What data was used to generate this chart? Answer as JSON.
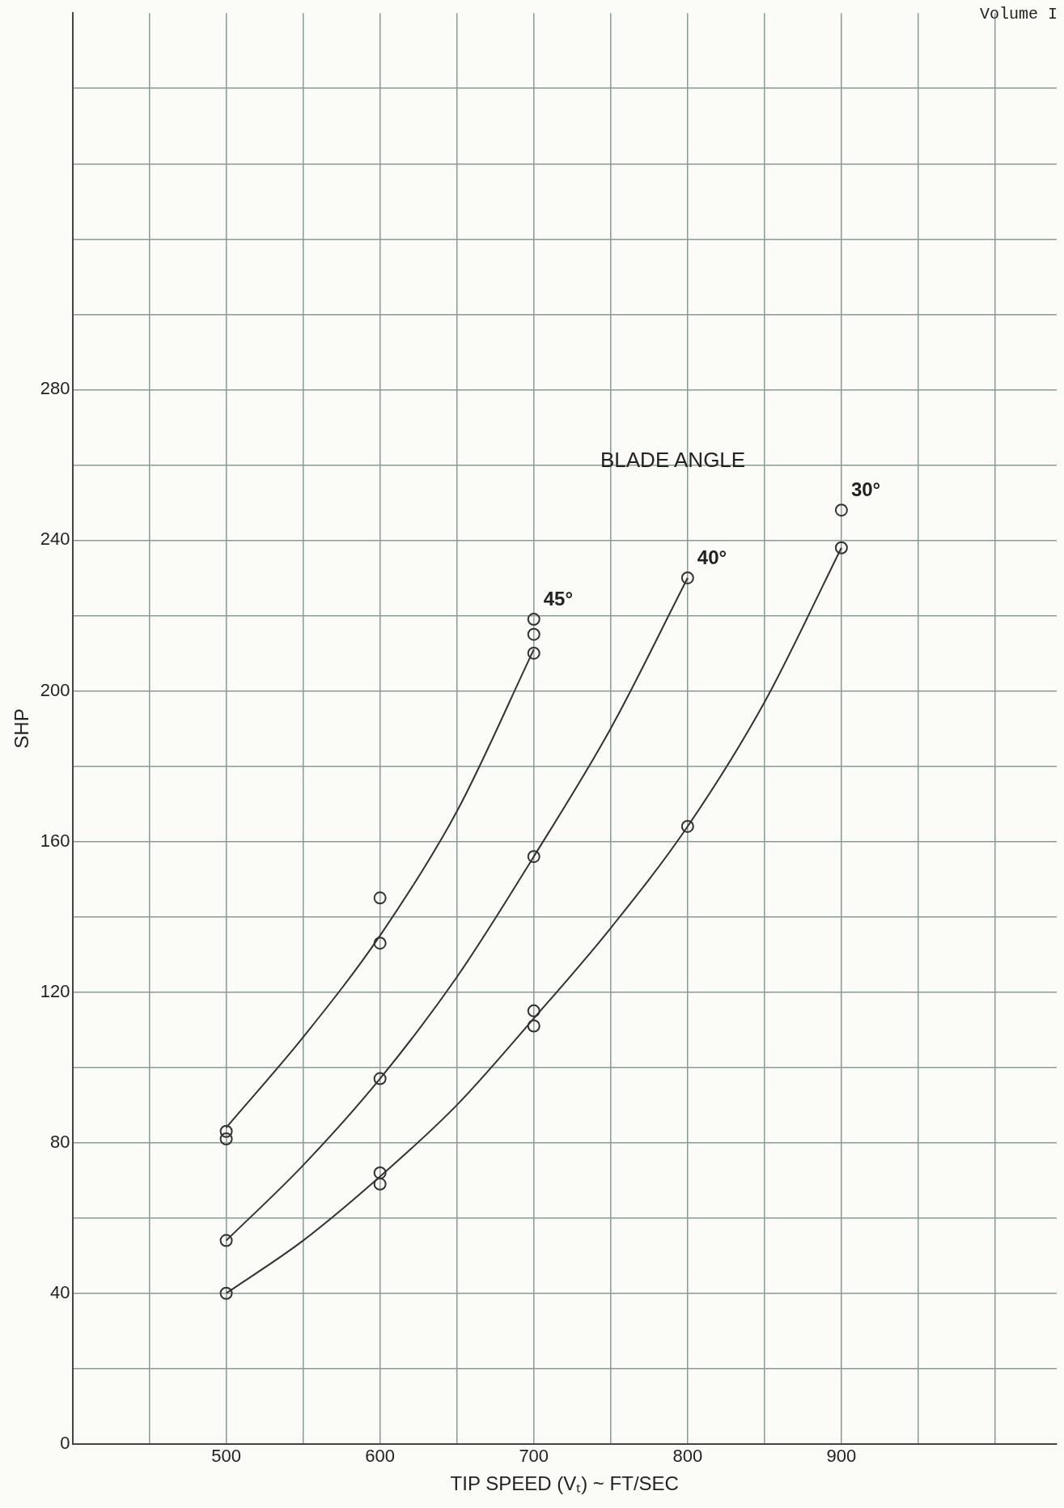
{
  "chart_data": {
    "type": "scatter",
    "xlabel": "TIP SPEED (Vₜ) ~ FT/SEC",
    "ylabel": "SHP",
    "xlim": [
      400,
      1040
    ],
    "xticks": [
      {
        "value": 450,
        "label": null
      },
      500,
      {
        "value": 550,
        "label": null
      },
      600,
      {
        "value": 650,
        "label": null
      },
      700,
      {
        "value": 750,
        "label": null
      },
      800,
      {
        "value": 850,
        "label": null
      },
      900,
      {
        "value": 950,
        "label": null
      },
      {
        "value": 1000,
        "label": null
      }
    ],
    "ylim": [
      0,
      380
    ],
    "yticks": [
      0,
      {
        "value": 20,
        "label": null
      },
      40,
      {
        "value": 60,
        "label": null
      },
      80,
      {
        "value": 100,
        "label": null
      },
      120,
      {
        "value": 140,
        "label": null
      },
      160,
      {
        "value": 180,
        "label": null
      },
      200,
      {
        "value": 220,
        "label": null
      },
      240,
      {
        "value": 260,
        "label": null
      },
      280,
      {
        "value": 300,
        "label": null
      },
      {
        "value": 320,
        "label": null
      },
      {
        "value": 340,
        "label": null
      },
      {
        "value": 360,
        "label": null
      }
    ],
    "grid": true,
    "legend": false,
    "series": [
      {
        "name": "45°",
        "marker": "circle",
        "color": "#333333",
        "x": [
          500,
          500,
          600,
          600,
          700,
          700,
          700
        ],
        "values": [
          83,
          81,
          133,
          145,
          210,
          215,
          219
        ]
      },
      {
        "name": "40°",
        "marker": "circle",
        "color": "#333333",
        "x": [
          500,
          600,
          700,
          800
        ],
        "values": [
          54,
          97,
          156,
          230
        ]
      },
      {
        "name": "30°",
        "marker": "circle",
        "color": "#333333",
        "x": [
          500,
          600,
          600,
          700,
          700,
          800,
          900,
          900
        ],
        "values": [
          40,
          72,
          69,
          115,
          111,
          164,
          238,
          248
        ]
      },
      {
        "type": "line",
        "color": "#333333",
        "x": [
          500,
          550,
          600,
          650,
          700
        ],
        "values": [
          84,
          108,
          135,
          168,
          211
        ]
      },
      {
        "type": "line",
        "color": "#333333",
        "x": [
          500,
          550,
          600,
          650,
          700,
          750,
          800
        ],
        "values": [
          54,
          74,
          97,
          124,
          156,
          190,
          230
        ]
      },
      {
        "type": "line",
        "color": "#333333",
        "x": [
          500,
          550,
          600,
          650,
          700,
          750,
          800,
          850,
          900
        ],
        "values": [
          40,
          54,
          71,
          90,
          113,
          137,
          164,
          197,
          238
        ]
      }
    ],
    "annotations": [
      "BLADE ANGLE",
      "Volume I"
    ]
  }
}
